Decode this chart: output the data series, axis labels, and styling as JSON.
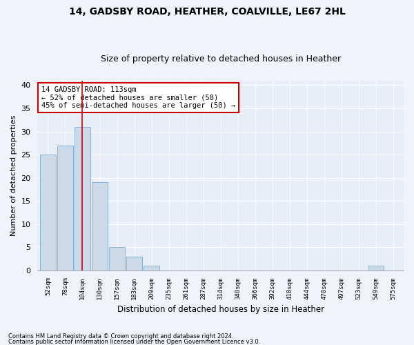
{
  "title1": "14, GADSBY ROAD, HEATHER, COALVILLE, LE67 2HL",
  "title2": "Size of property relative to detached houses in Heather",
  "xlabel": "Distribution of detached houses by size in Heather",
  "ylabel": "Number of detached properties",
  "bin_labels": [
    "52sqm",
    "78sqm",
    "104sqm",
    "130sqm",
    "157sqm",
    "183sqm",
    "209sqm",
    "235sqm",
    "261sqm",
    "287sqm",
    "314sqm",
    "340sqm",
    "366sqm",
    "392sqm",
    "418sqm",
    "444sqm",
    "470sqm",
    "497sqm",
    "523sqm",
    "549sqm",
    "575sqm"
  ],
  "bar_values": [
    25,
    27,
    31,
    19,
    5,
    3,
    1,
    0,
    0,
    0,
    0,
    0,
    0,
    0,
    0,
    0,
    0,
    0,
    0,
    1,
    0
  ],
  "bar_color": "#ccd9e8",
  "bar_edge_color": "#8ab4d4",
  "red_line_x": 2,
  "annotation_title": "14 GADSBY ROAD: 113sqm",
  "annotation_line1": "← 52% of detached houses are smaller (58)",
  "annotation_line2": "45% of semi-detached houses are larger (50) →",
  "annotation_box_color": "#ffffff",
  "annotation_border_color": "#cc0000",
  "red_line_color": "#cc0000",
  "ylim": [
    0,
    41
  ],
  "yticks": [
    0,
    5,
    10,
    15,
    20,
    25,
    30,
    35,
    40
  ],
  "footnote1": "Contains HM Land Registry data © Crown copyright and database right 2024.",
  "footnote2": "Contains public sector information licensed under the Open Government Licence v3.0.",
  "background_color": "#f0f4fa",
  "plot_bg_color": "#e8eef8",
  "title1_fontsize": 10,
  "title2_fontsize": 9,
  "xlabel_fontsize": 8.5,
  "ylabel_fontsize": 8,
  "xtick_fontsize": 6.5,
  "ytick_fontsize": 8,
  "annot_fontsize": 7.5,
  "footnote_fontsize": 6
}
